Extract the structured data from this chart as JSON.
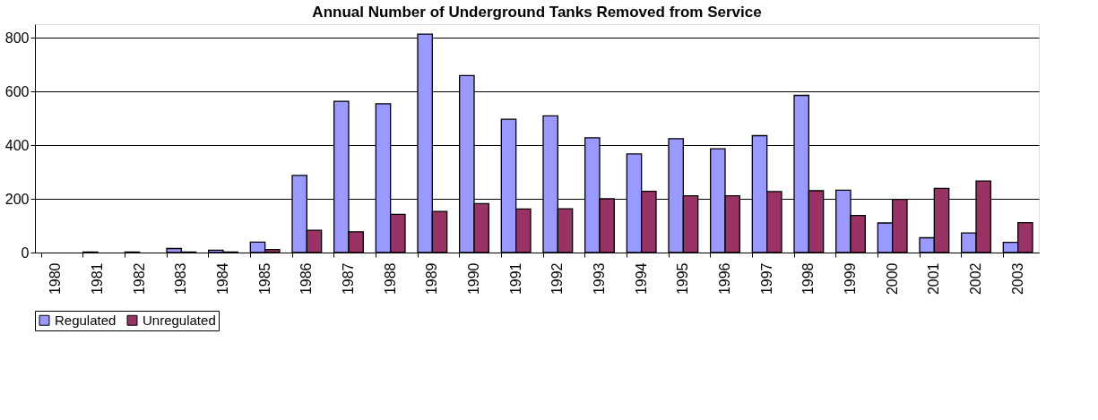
{
  "chart_data": {
    "type": "bar",
    "title": "Annual Number of Underground Tanks Removed from Service",
    "categories": [
      "1980",
      "1981",
      "1982",
      "1983",
      "1984",
      "1985",
      "1986",
      "1987",
      "1988",
      "1989",
      "1990",
      "1991",
      "1992",
      "1993",
      "1994",
      "1995",
      "1996",
      "1997",
      "1998",
      "1999",
      "2000",
      "2001",
      "2002",
      "2003"
    ],
    "series": [
      {
        "name": "Regulated",
        "color": "#9999ff",
        "values": [
          null,
          2,
          2,
          15,
          9,
          39,
          287,
          563,
          554,
          813,
          659,
          496,
          509,
          427,
          367,
          424,
          386,
          435,
          585,
          232,
          110,
          55,
          73,
          38
        ]
      },
      {
        "name": "Unregulated",
        "color": "#993366",
        "values": [
          null,
          null,
          null,
          2,
          2,
          11,
          83,
          77,
          142,
          153,
          182,
          162,
          163,
          200,
          228,
          211,
          211,
          227,
          230,
          138,
          198,
          239,
          266,
          111
        ]
      }
    ],
    "ylim": [
      0,
      850
    ],
    "yticks": [
      0,
      200,
      400,
      600,
      800
    ],
    "grid": "y",
    "legend": "bottom"
  }
}
